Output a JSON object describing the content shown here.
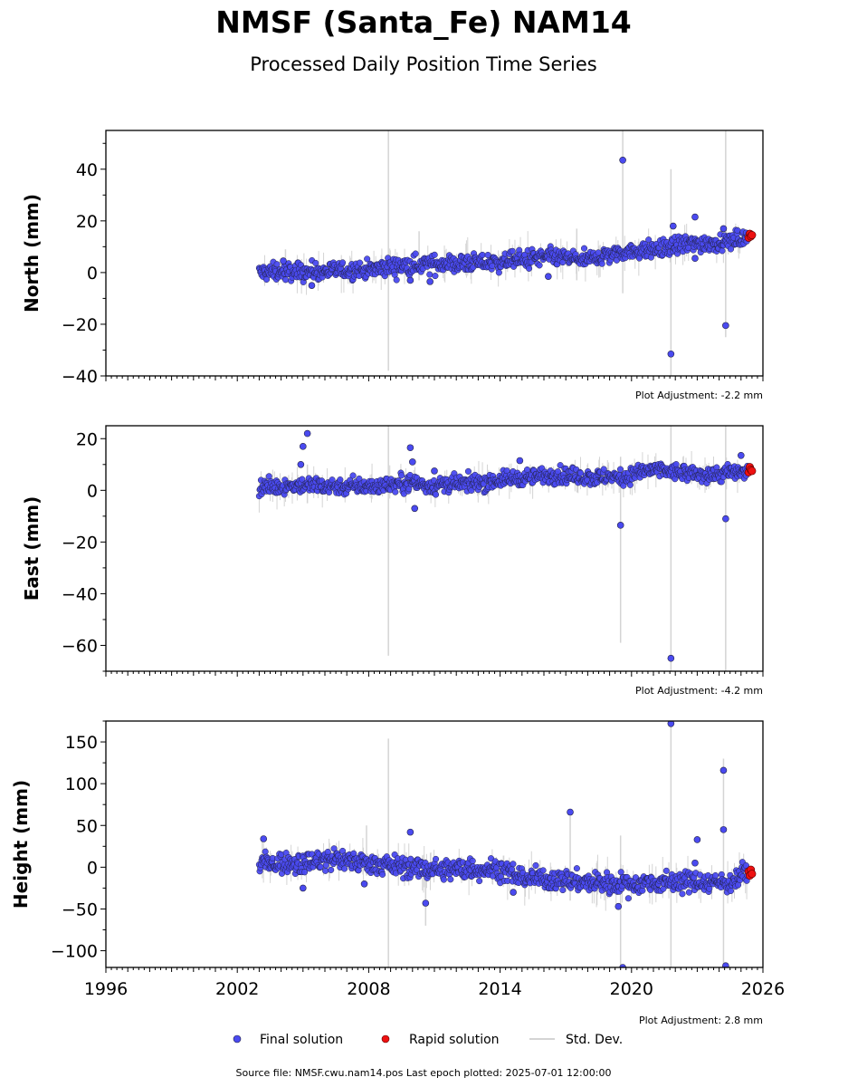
{
  "header": {
    "title": "NMSF (Santa_Fe) NAM14",
    "subtitle": "Processed Daily Position Time Series"
  },
  "legend": {
    "final_label": "Final solution",
    "rapid_label": "Rapid solution",
    "stddev_label": "Std. Dev."
  },
  "footer": {
    "source": "Source file: NMSF.cwu.nam14.pos  Last epoch plotted: 2025-07-01 12:00:00"
  },
  "colors": {
    "final": "#4a4af0",
    "rapid": "#ee1111",
    "stddev": "#d4d4d4",
    "edge": "#222244"
  },
  "chart_data": [
    {
      "type": "scatter",
      "ylabel": "North (mm)",
      "ylim": [
        -40,
        55
      ],
      "yticks": [
        -40,
        -20,
        0,
        20,
        40
      ],
      "yticklabels": [
        "−40",
        "−20",
        "0",
        "20",
        "40"
      ],
      "xlim": [
        1996,
        2026
      ],
      "xticks": [
        1996,
        2002,
        2008,
        2014,
        2020,
        2026
      ],
      "xticklabels": [],
      "adjustment": "Plot Adjustment: -2.2 mm",
      "trend": [
        [
          2003.0,
          0
        ],
        [
          2008.0,
          1
        ],
        [
          2010.0,
          3
        ],
        [
          2014.0,
          4
        ],
        [
          2016.0,
          6
        ],
        [
          2018.0,
          5
        ],
        [
          2019.5,
          8
        ],
        [
          2021.0,
          9
        ],
        [
          2022.5,
          11
        ],
        [
          2024.5,
          12
        ],
        [
          2025.5,
          14
        ]
      ],
      "spread": 2.5,
      "stddev_bars": [
        [
          2008.9,
          -38,
          55
        ],
        [
          2010.3,
          -3,
          16
        ],
        [
          2017.5,
          -3,
          17
        ],
        [
          2019.6,
          -8,
          55
        ],
        [
          2021.8,
          -40,
          40
        ],
        [
          2024.3,
          -25,
          55
        ],
        [
          2004.2,
          -4,
          9
        ]
      ],
      "outliers": [
        [
          2019.6,
          43.5
        ],
        [
          2021.8,
          -31.5
        ],
        [
          2024.3,
          -20.5
        ],
        [
          2022.9,
          21.5
        ],
        [
          2021.9,
          18
        ],
        [
          2024.2,
          17
        ],
        [
          2009.9,
          -3
        ],
        [
          2010.8,
          -3.5
        ],
        [
          2016.2,
          -1.5
        ],
        [
          2022.9,
          5.5
        ],
        [
          2004.1,
          4.5
        ],
        [
          2005.4,
          -5
        ]
      ],
      "rapid": [
        [
          2025.35,
          13.5
        ],
        [
          2025.4,
          15
        ],
        [
          2025.45,
          14
        ],
        [
          2025.5,
          14.5
        ]
      ]
    },
    {
      "type": "scatter",
      "ylabel": "East (mm)",
      "ylim": [
        -70,
        25
      ],
      "yticks": [
        -60,
        -40,
        -20,
        0,
        20
      ],
      "yticklabels": [
        "−60",
        "−40",
        "−20",
        "0",
        "20"
      ],
      "xlim": [
        1996,
        2026
      ],
      "xticks": [
        1996,
        2002,
        2008,
        2014,
        2020,
        2026
      ],
      "xticklabels": [],
      "adjustment": "Plot Adjustment: -4.2 mm",
      "trend": [
        [
          2003.0,
          1
        ],
        [
          2005.0,
          2
        ],
        [
          2008.0,
          1.5
        ],
        [
          2010.0,
          3
        ],
        [
          2011.0,
          1.5
        ],
        [
          2013.0,
          3
        ],
        [
          2015.0,
          5
        ],
        [
          2016.5,
          6
        ],
        [
          2018.0,
          5
        ],
        [
          2019.5,
          5
        ],
        [
          2021.0,
          8
        ],
        [
          2023.0,
          6
        ],
        [
          2025.5,
          7
        ]
      ],
      "spread": 2.3,
      "stddev_bars": [
        [
          2008.9,
          -64,
          25
        ],
        [
          2019.5,
          -59,
          13
        ],
        [
          2021.8,
          -70,
          25
        ],
        [
          2024.3,
          -70,
          25
        ],
        [
          2005.2,
          -5,
          10
        ]
      ],
      "outliers": [
        [
          2005.2,
          22
        ],
        [
          2005.0,
          17
        ],
        [
          2009.9,
          16.5
        ],
        [
          2010.0,
          11
        ],
        [
          2004.9,
          10
        ],
        [
          2010.1,
          -7
        ],
        [
          2011.0,
          7.5
        ],
        [
          2019.5,
          -13.5
        ],
        [
          2021.8,
          -65
        ],
        [
          2024.3,
          -11
        ],
        [
          2025.0,
          13.5
        ],
        [
          2014.9,
          11.5
        ]
      ],
      "rapid": [
        [
          2025.35,
          7
        ],
        [
          2025.4,
          9
        ],
        [
          2025.45,
          8
        ],
        [
          2025.5,
          7.5
        ]
      ]
    },
    {
      "type": "scatter",
      "ylabel": "Height (mm)",
      "ylim": [
        -120,
        175
      ],
      "yticks": [
        -100,
        -50,
        0,
        50,
        100,
        150
      ],
      "yticklabels": [
        "−100",
        "−50",
        "0",
        "50",
        "100",
        "150"
      ],
      "xlim": [
        1996,
        2026
      ],
      "xticks": [
        1996,
        2002,
        2008,
        2014,
        2020,
        2026
      ],
      "xticklabels": [
        "1996",
        "2002",
        "2008",
        "2014",
        "2020",
        "2026"
      ],
      "adjustment": "Plot Adjustment: 2.8 mm",
      "trend": [
        [
          2003.0,
          5
        ],
        [
          2005.0,
          5
        ],
        [
          2006.5,
          10
        ],
        [
          2008.0,
          5
        ],
        [
          2011.0,
          -3
        ],
        [
          2014.0,
          -2
        ],
        [
          2015.0,
          -12
        ],
        [
          2018.0,
          -18
        ],
        [
          2020.0,
          -20
        ],
        [
          2022.0,
          -17
        ],
        [
          2024.5,
          -18
        ],
        [
          2025.2,
          -5
        ],
        [
          2025.5,
          -8
        ]
      ],
      "spread": 9,
      "stddev_bars": [
        [
          2008.9,
          -120,
          154
        ],
        [
          2010.6,
          -70,
          10
        ],
        [
          2017.2,
          -40,
          70
        ],
        [
          2019.5,
          -120,
          38
        ],
        [
          2021.8,
          -120,
          175
        ],
        [
          2024.2,
          -120,
          130
        ],
        [
          2007.9,
          -10,
          50
        ]
      ],
      "outliers": [
        [
          2021.8,
          172
        ],
        [
          2024.2,
          116
        ],
        [
          2017.2,
          66
        ],
        [
          2009.9,
          42
        ],
        [
          2024.2,
          45
        ],
        [
          2023.0,
          33
        ],
        [
          2003.2,
          34
        ],
        [
          2010.6,
          -43
        ],
        [
          2019.4,
          -47
        ],
        [
          2019.6,
          -120
        ],
        [
          2024.3,
          -118
        ],
        [
          2007.8,
          -20
        ],
        [
          2014.6,
          -30
        ],
        [
          2005.0,
          -25
        ],
        [
          2022.9,
          5
        ]
      ],
      "rapid": [
        [
          2025.35,
          -5
        ],
        [
          2025.4,
          -10
        ],
        [
          2025.45,
          -3
        ],
        [
          2025.5,
          -8
        ]
      ]
    }
  ]
}
